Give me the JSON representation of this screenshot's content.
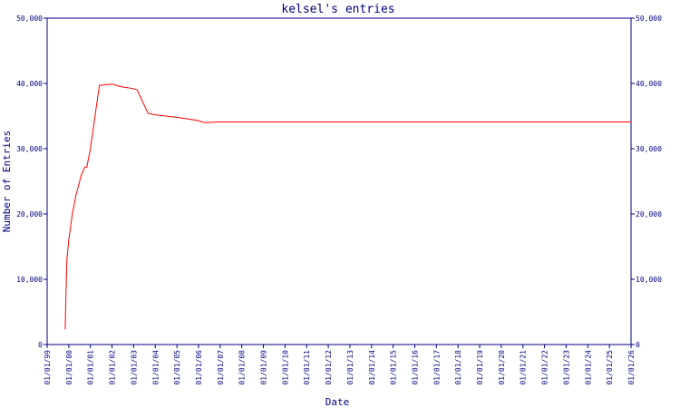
{
  "chart_data": {
    "type": "line",
    "title": "kelsel's entries",
    "xlabel": "Date",
    "ylabel": "Number of Entries",
    "ylim": [
      0,
      50000
    ],
    "y_ticks": [
      "0",
      "10,000",
      "20,000",
      "30,000",
      "40,000",
      "50,000"
    ],
    "y_tick_values": [
      0,
      10000,
      20000,
      30000,
      40000,
      50000
    ],
    "x_ticks": [
      "01/01/99",
      "01/01/00",
      "01/01/01",
      "01/01/02",
      "01/01/03",
      "01/01/04",
      "01/01/05",
      "01/01/06",
      "01/01/07",
      "01/01/08",
      "01/01/09",
      "01/01/10",
      "01/01/11",
      "01/01/12",
      "01/01/13",
      "01/01/14",
      "01/01/15",
      "01/01/16",
      "01/01/17",
      "01/01/18",
      "01/01/19",
      "01/01/20",
      "01/01/21",
      "01/01/22",
      "01/01/23",
      "01/01/24",
      "01/01/25",
      "01/01/26"
    ],
    "xlim": [
      "1999-01-01",
      "2026-01-01"
    ],
    "grid": false,
    "line_color": "#ff0000",
    "axis_color": "#000080",
    "series": [
      {
        "x": [
          "1999-11-01",
          "1999-11-15",
          "1999-12-01",
          "2000-01-01",
          "2000-03-01",
          "2000-05-01",
          "2000-08-01",
          "2000-10-01",
          "2000-11-01",
          "2001-01-01",
          "2001-06-01",
          "2002-01-01",
          "2002-06-01",
          "2003-01-01",
          "2003-03-01",
          "2003-09-01",
          "2004-01-01",
          "2005-01-01",
          "2006-01-01",
          "2006-04-01",
          "2007-01-01",
          "2026-01-01"
        ],
        "y": [
          2300,
          8000,
          13000,
          16000,
          20000,
          22800,
          26000,
          27200,
          27200,
          30000,
          39700,
          39900,
          39500,
          39200,
          39000,
          35400,
          35200,
          34800,
          34300,
          34000,
          34100,
          34100
        ]
      }
    ]
  }
}
